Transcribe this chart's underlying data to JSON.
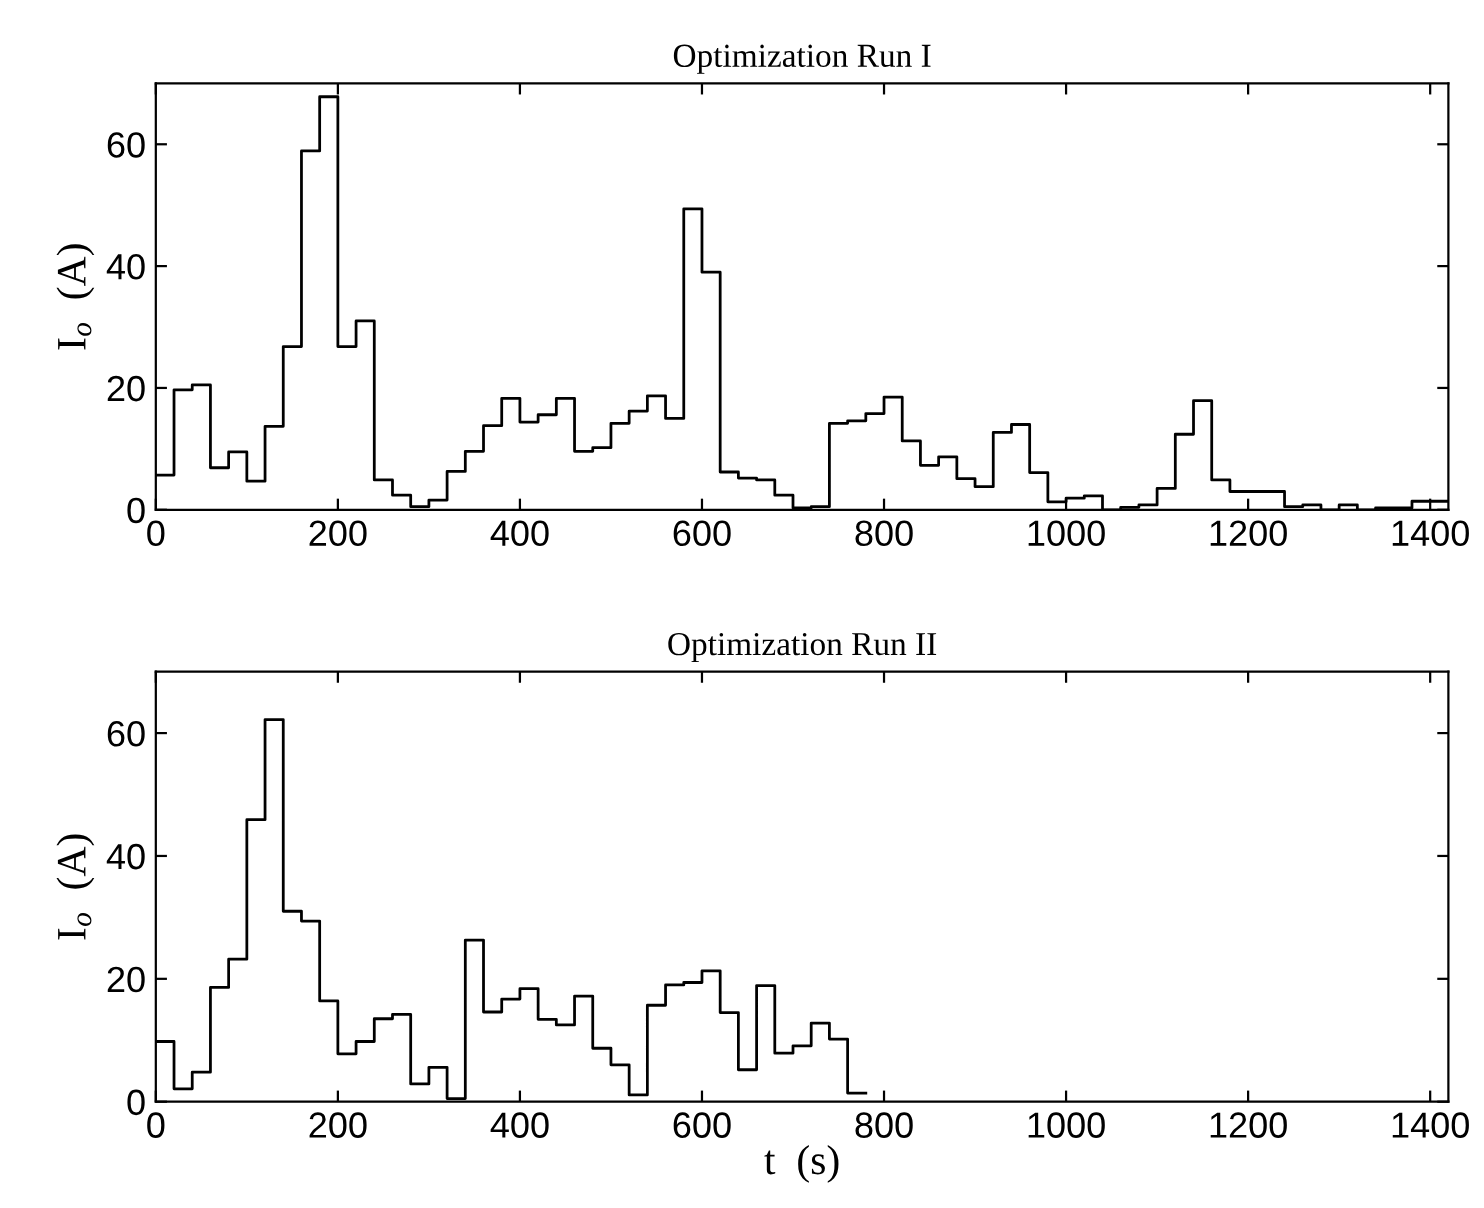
{
  "chart_data": [
    {
      "type": "step",
      "title": "Optimization Run I",
      "ylabel": "I$_{o}$  (A)",
      "xlim": [
        0,
        1420
      ],
      "xticks": [
        0,
        200,
        400,
        600,
        800,
        1000,
        1200,
        1400
      ],
      "ylim": [
        0,
        70
      ],
      "yticks": [
        0,
        20,
        40,
        60
      ],
      "grid": false,
      "x": [
        0,
        20,
        40,
        60,
        80,
        100,
        120,
        140,
        160,
        180,
        200,
        220,
        240,
        260,
        280,
        300,
        320,
        340,
        360,
        380,
        400,
        420,
        440,
        460,
        480,
        500,
        520,
        540,
        560,
        580,
        600,
        620,
        640,
        660,
        680,
        700,
        720,
        740,
        760,
        780,
        800,
        820,
        840,
        860,
        880,
        900,
        920,
        940,
        960,
        980,
        1000,
        1020,
        1040,
        1060,
        1080,
        1100,
        1120,
        1140,
        1160,
        1180,
        1200,
        1220,
        1240,
        1260,
        1280,
        1300,
        1320,
        1340,
        1360,
        1380,
        1400,
        1420
      ],
      "series": [
        {
          "color": "#000000",
          "values": [
            5.7,
            19.7,
            20.5,
            6.9,
            9.5,
            4.7,
            13.7,
            26.8,
            58.9,
            67.8,
            26.8,
            31.0,
            4.9,
            2.4,
            0.5,
            1.6,
            6.3,
            9.6,
            13.8,
            18.3,
            14.4,
            15.6,
            18.3,
            9.6,
            10.2,
            14.2,
            16.2,
            18.7,
            15.0,
            49.4,
            39.0,
            6.2,
            5.2,
            4.9,
            2.4,
            0.3,
            0.5,
            14.2,
            14.6,
            15.8,
            18.5,
            11.3,
            7.3,
            8.7,
            5.1,
            3.8,
            12.7,
            14.0,
            6.1,
            1.3,
            1.9,
            2.3,
            0,
            0.4,
            0.8,
            3.5,
            12.4,
            17.9,
            4.9,
            3.0,
            3.0,
            3.0,
            0.5,
            0.8,
            0,
            0.8,
            0,
            0.3,
            0.3,
            1.4,
            1.4,
            1.4
          ]
        }
      ]
    },
    {
      "type": "step",
      "title": "Optimization Run II",
      "ylabel": "I$_{o}$  (A)",
      "xlabel": "t  (s)",
      "xlim": [
        0,
        1420
      ],
      "xticks": [
        0,
        200,
        400,
        600,
        800,
        1000,
        1200,
        1400
      ],
      "ylim": [
        0,
        70
      ],
      "yticks": [
        0,
        20,
        40,
        60
      ],
      "grid": false,
      "x": [
        0,
        20,
        40,
        60,
        80,
        100,
        120,
        140,
        160,
        180,
        200,
        220,
        240,
        260,
        280,
        300,
        320,
        340,
        360,
        380,
        400,
        420,
        440,
        460,
        480,
        500,
        520,
        540,
        560,
        580,
        600,
        620,
        640,
        660,
        680,
        700,
        720,
        740,
        760,
        780
      ],
      "series": [
        {
          "color": "#000000",
          "values": [
            9.8,
            2.1,
            4.8,
            18.6,
            23.2,
            45.9,
            62.2,
            31.0,
            29.4,
            16.4,
            7.8,
            9.8,
            13.5,
            14.2,
            2.9,
            5.6,
            0.5,
            26.3,
            14.6,
            16.7,
            18.4,
            13.4,
            12.5,
            17.2,
            8.7,
            6.0,
            1.1,
            15.7,
            19.0,
            19.4,
            21.3,
            14.5,
            5.2,
            18.9,
            7.9,
            9.1,
            12.8,
            10.2,
            1.4,
            1.4
          ]
        }
      ]
    }
  ]
}
